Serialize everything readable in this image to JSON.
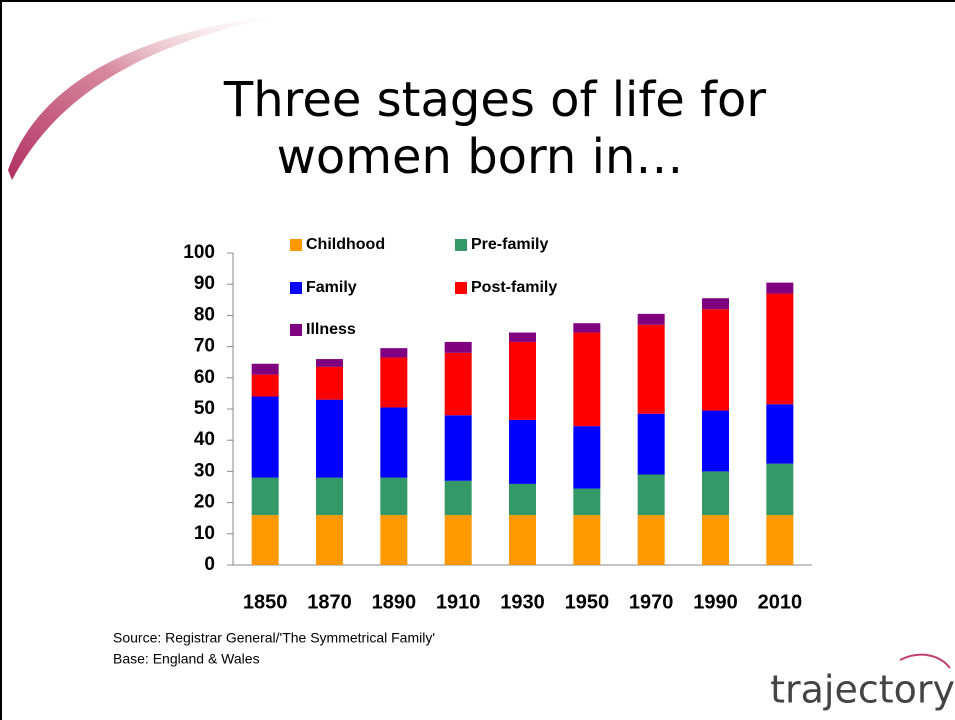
{
  "chart_data": {
    "type": "stacked_bar",
    "title_lines": [
      "Three stages of life for",
      "women born in…"
    ],
    "categories": [
      "1850",
      "1870",
      "1890",
      "1910",
      "1930",
      "1950",
      "1970",
      "1990",
      "2010"
    ],
    "series": [
      {
        "name": "Childhood",
        "color": "#FF9900",
        "values": [
          16,
          16,
          16,
          16,
          16,
          16,
          16,
          16,
          16
        ]
      },
      {
        "name": "Pre-family",
        "color": "#339966",
        "values": [
          12,
          12,
          12,
          11,
          10,
          8.5,
          13,
          14,
          16.5
        ]
      },
      {
        "name": "Family",
        "color": "#0000FF",
        "values": [
          26,
          25,
          22.5,
          21,
          20.5,
          20,
          19.5,
          19.5,
          19
        ]
      },
      {
        "name": "Post-family",
        "color": "#FF0000",
        "values": [
          7,
          10.5,
          16,
          20,
          25,
          30,
          28.5,
          32.5,
          35.5
        ]
      },
      {
        "name": "Illness",
        "color": "#800080",
        "values": [
          3.5,
          2.5,
          3,
          3.5,
          3,
          3,
          3.5,
          3.5,
          3.5
        ]
      }
    ],
    "ylim": [
      0,
      100
    ],
    "yticks": [
      0,
      10,
      20,
      30,
      40,
      50,
      60,
      70,
      80,
      90,
      100
    ],
    "notes": [
      "Source: Registrar General/'The Symmetrical Family'",
      "Base: England & Wales"
    ],
    "logo": "trajectory"
  }
}
